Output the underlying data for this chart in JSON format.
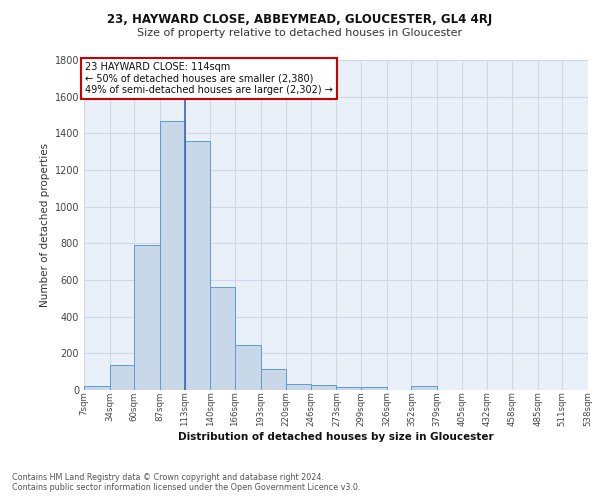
{
  "title1": "23, HAYWARD CLOSE, ABBEYMEAD, GLOUCESTER, GL4 4RJ",
  "title2": "Size of property relative to detached houses in Gloucester",
  "xlabel": "Distribution of detached houses by size in Gloucester",
  "ylabel": "Number of detached properties",
  "bin_labels": [
    "7sqm",
    "34sqm",
    "60sqm",
    "87sqm",
    "113sqm",
    "140sqm",
    "166sqm",
    "193sqm",
    "220sqm",
    "246sqm",
    "273sqm",
    "299sqm",
    "326sqm",
    "352sqm",
    "379sqm",
    "405sqm",
    "432sqm",
    "458sqm",
    "485sqm",
    "511sqm",
    "538sqm"
  ],
  "bin_edges": [
    7,
    34,
    60,
    87,
    113,
    140,
    166,
    193,
    220,
    246,
    273,
    299,
    326,
    352,
    379,
    405,
    432,
    458,
    485,
    511,
    538
  ],
  "bar_heights": [
    20,
    135,
    790,
    1470,
    1360,
    560,
    248,
    112,
    35,
    25,
    15,
    15,
    0,
    20,
    0,
    0,
    0,
    0,
    0,
    0
  ],
  "bar_color": "#c8d8e8",
  "bar_edge_color": "#5a9ad5",
  "vline_x": 113,
  "annotation_text1": "23 HAYWARD CLOSE: 114sqm",
  "annotation_text2": "← 50% of detached houses are smaller (2,380)",
  "annotation_text3": "49% of semi-detached houses are larger (2,302) →",
  "annotation_box_color": "#ffffff",
  "annotation_box_edge": "#cc0000",
  "vline_color": "#3a6bb5",
  "grid_color": "#d0d8e8",
  "bg_color": "#eaf0f8",
  "footnote1": "Contains HM Land Registry data © Crown copyright and database right 2024.",
  "footnote2": "Contains public sector information licensed under the Open Government Licence v3.0.",
  "ylim": [
    0,
    1800
  ],
  "yticks": [
    0,
    200,
    400,
    600,
    800,
    1000,
    1200,
    1400,
    1600,
    1800
  ]
}
